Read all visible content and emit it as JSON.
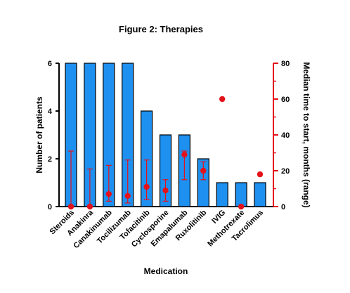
{
  "chart_data": {
    "type": "bar",
    "title": "Figure 2: Therapies",
    "xlabel": "Medication",
    "ylabel": "Number of patients",
    "y2label": "Median time to start, months (range)",
    "categories": [
      "Steroids",
      "Anakinra",
      "Canakinumab",
      "Tocilizumab",
      "Tofacitinib",
      "Cyclosporine",
      "Emapalumab",
      "Ruxolitinib",
      "IVIG",
      "Methotrexate",
      "Tacrolimus"
    ],
    "series": [
      {
        "values": [
          6,
          6,
          6,
          6,
          4,
          3,
          3,
          2,
          1,
          1,
          1
        ],
        "axis": "left",
        "color": "#1e90f0"
      },
      {
        "axis": "right",
        "color": "#e3121b",
        "median": [
          0,
          0,
          7,
          6,
          11,
          9,
          29,
          20,
          60,
          0,
          18
        ],
        "range_low": [
          0,
          0,
          3,
          2,
          4,
          3,
          15,
          15,
          null,
          null,
          null
        ],
        "range_high": [
          31,
          21,
          23,
          26,
          26,
          15,
          31,
          25,
          null,
          null,
          null
        ]
      }
    ],
    "ylim": [
      0,
      6
    ],
    "y_ticks": [
      "0",
      "2",
      "4",
      "6"
    ],
    "y2lim": [
      0,
      80
    ],
    "y2_ticks": [
      "0",
      "20",
      "40",
      "60",
      "80"
    ],
    "grid": false,
    "colors": {
      "bar_fill": "#1e90f0",
      "bar_stroke": "#000000",
      "right_axis": "#e3121b",
      "marker": "#e3121b"
    }
  }
}
